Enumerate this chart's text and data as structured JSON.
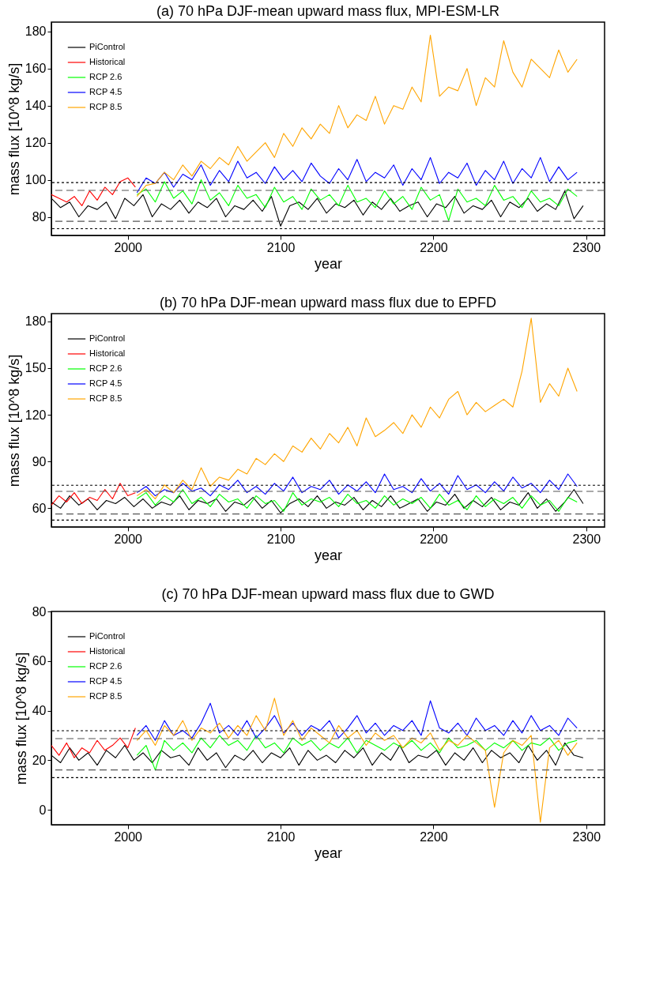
{
  "chart_data": [
    {
      "type": "line",
      "title": "(a) 70 hPa DJF-mean upward mass flux, MPI-ESM-LR",
      "xlabel": "year",
      "ylabel": "mass flux [10^8 kg/s]",
      "xlim": [
        1950,
        2312
      ],
      "ylim": [
        70,
        185
      ],
      "xticks": [
        2000,
        2100,
        2200,
        2300
      ],
      "yticks": [
        80,
        100,
        120,
        140,
        160,
        180
      ],
      "legend": "top left",
      "grid": false,
      "ref_lines": [
        {
          "axis": "y",
          "value": 98.5,
          "color": "#000000",
          "line_style": "dotted"
        },
        {
          "axis": "y",
          "value": 94.3,
          "color": "#555555",
          "line_style": "dashed"
        },
        {
          "axis": "y",
          "value": 77.6,
          "color": "#555555",
          "line_style": "dashed"
        },
        {
          "axis": "y",
          "value": 73.6,
          "color": "#000000",
          "line_style": "dotted"
        }
      ],
      "series": [
        {
          "name": "PiControl",
          "color": "#000000",
          "x": [
            1950,
            1956,
            1962,
            1968,
            1974,
            1980,
            1986,
            1992,
            1998,
            2004,
            2010,
            2016,
            2022,
            2028,
            2034,
            2040,
            2046,
            2052,
            2058,
            2064,
            2070,
            2076,
            2082,
            2088,
            2094,
            2100,
            2106,
            2112,
            2118,
            2124,
            2130,
            2136,
            2142,
            2148,
            2154,
            2160,
            2166,
            2172,
            2178,
            2184,
            2190,
            2196,
            2202,
            2208,
            2214,
            2220,
            2226,
            2232,
            2238,
            2244,
            2250,
            2256,
            2262,
            2268,
            2274,
            2280,
            2286,
            2292,
            2298
          ],
          "values": [
            90,
            85,
            88,
            80,
            86,
            84,
            88,
            79,
            90,
            86,
            92,
            80,
            87,
            84,
            89,
            82,
            88,
            85,
            90,
            80,
            86,
            84,
            89,
            83,
            91,
            75,
            86,
            88,
            84,
            90,
            82,
            87,
            85,
            89,
            81,
            88,
            84,
            90,
            83,
            86,
            88,
            80,
            87,
            85,
            91,
            82,
            86,
            84,
            89,
            80,
            88,
            85,
            90,
            83,
            87,
            84,
            94,
            79,
            86
          ]
        },
        {
          "name": "Historical",
          "color": "#ff0000",
          "x": [
            1950,
            1955,
            1960,
            1965,
            1970,
            1975,
            1980,
            1985,
            1990,
            1995,
            2000,
            2005
          ],
          "values": [
            92,
            90,
            88,
            91,
            86,
            94,
            89,
            96,
            92,
            99,
            101,
            96
          ]
        },
        {
          "name": "RCP 2.6",
          "color": "#00ff00",
          "x": [
            2006,
            2012,
            2018,
            2024,
            2030,
            2036,
            2042,
            2048,
            2054,
            2060,
            2066,
            2072,
            2078,
            2084,
            2090,
            2096,
            2102,
            2108,
            2114,
            2120,
            2126,
            2132,
            2138,
            2144,
            2150,
            2156,
            2162,
            2168,
            2174,
            2180,
            2186,
            2192,
            2198,
            2204,
            2210,
            2216,
            2222,
            2228,
            2234,
            2240,
            2246,
            2252,
            2258,
            2264,
            2270,
            2276,
            2282,
            2288,
            2294
          ],
          "values": [
            92,
            95,
            88,
            99,
            90,
            94,
            87,
            100,
            89,
            93,
            86,
            97,
            90,
            92,
            85,
            96,
            88,
            91,
            84,
            95,
            89,
            92,
            86,
            97,
            88,
            90,
            85,
            94,
            87,
            91,
            84,
            96,
            89,
            92,
            78,
            95,
            88,
            90,
            86,
            97,
            89,
            91,
            85,
            94,
            88,
            90,
            86,
            95,
            91
          ]
        },
        {
          "name": "RCP 4.5",
          "color": "#0000ff",
          "x": [
            2006,
            2012,
            2018,
            2024,
            2030,
            2036,
            2042,
            2048,
            2054,
            2060,
            2066,
            2072,
            2078,
            2084,
            2090,
            2096,
            2102,
            2108,
            2114,
            2120,
            2126,
            2132,
            2138,
            2144,
            2150,
            2156,
            2162,
            2168,
            2174,
            2180,
            2186,
            2192,
            2198,
            2204,
            2210,
            2216,
            2222,
            2228,
            2234,
            2240,
            2246,
            2252,
            2258,
            2264,
            2270,
            2276,
            2282,
            2288,
            2294
          ],
          "values": [
            93,
            101,
            98,
            104,
            96,
            103,
            100,
            108,
            97,
            105,
            99,
            110,
            101,
            104,
            98,
            107,
            100,
            105,
            99,
            109,
            102,
            98,
            106,
            100,
            111,
            99,
            104,
            101,
            108,
            97,
            106,
            100,
            112,
            98,
            104,
            101,
            109,
            97,
            105,
            100,
            110,
            98,
            106,
            101,
            112,
            99,
            107,
            100,
            104
          ]
        },
        {
          "name": "RCP 8.5",
          "color": "#ffa500",
          "x": [
            2006,
            2012,
            2018,
            2024,
            2030,
            2036,
            2042,
            2048,
            2054,
            2060,
            2066,
            2072,
            2078,
            2084,
            2090,
            2096,
            2102,
            2108,
            2114,
            2120,
            2126,
            2132,
            2138,
            2144,
            2150,
            2156,
            2162,
            2168,
            2174,
            2180,
            2186,
            2192,
            2198,
            2204,
            2210,
            2216,
            2222,
            2228,
            2234,
            2240,
            2246,
            2252,
            2258,
            2264,
            2270,
            2276,
            2282,
            2288,
            2294
          ],
          "values": [
            91,
            97,
            98,
            104,
            100,
            108,
            102,
            110,
            106,
            112,
            108,
            118,
            110,
            115,
            120,
            112,
            125,
            118,
            128,
            122,
            130,
            125,
            140,
            128,
            135,
            132,
            145,
            130,
            140,
            138,
            150,
            142,
            178,
            145,
            150,
            148,
            160,
            140,
            155,
            150,
            175,
            158,
            150,
            165,
            160,
            155,
            170,
            158,
            165
          ]
        }
      ]
    },
    {
      "type": "line",
      "title": "(b) 70 hPa DJF-mean upward mass flux due to EPFD",
      "xlabel": "year",
      "ylabel": "mass flux [10^8 kg/s]",
      "xlim": [
        1950,
        2312
      ],
      "ylim": [
        48,
        185
      ],
      "xticks": [
        2000,
        2100,
        2200,
        2300
      ],
      "yticks": [
        60,
        90,
        120,
        150,
        180
      ],
      "legend": "top left",
      "grid": false,
      "ref_lines": [
        {
          "axis": "y",
          "value": 74.8,
          "color": "#000000",
          "line_style": "dotted"
        },
        {
          "axis": "y",
          "value": 70.8,
          "color": "#555555",
          "line_style": "dashed"
        },
        {
          "axis": "y",
          "value": 56.3,
          "color": "#555555",
          "line_style": "dashed"
        },
        {
          "axis": "y",
          "value": 52.4,
          "color": "#000000",
          "line_style": "dotted"
        }
      ],
      "series": [
        {
          "name": "PiControl",
          "color": "#000000",
          "x": [
            1950,
            1956,
            1962,
            1968,
            1974,
            1980,
            1986,
            1992,
            1998,
            2004,
            2010,
            2016,
            2022,
            2028,
            2034,
            2040,
            2046,
            2052,
            2058,
            2064,
            2070,
            2076,
            2082,
            2088,
            2094,
            2100,
            2106,
            2112,
            2118,
            2124,
            2130,
            2136,
            2142,
            2148,
            2154,
            2160,
            2166,
            2172,
            2178,
            2184,
            2190,
            2196,
            2202,
            2208,
            2214,
            2220,
            2226,
            2232,
            2238,
            2244,
            2250,
            2256,
            2262,
            2268,
            2274,
            2280,
            2286,
            2292,
            2298
          ],
          "values": [
            64,
            60,
            68,
            62,
            66,
            59,
            65,
            63,
            67,
            61,
            66,
            60,
            64,
            62,
            68,
            59,
            65,
            63,
            66,
            58,
            64,
            62,
            67,
            60,
            65,
            57,
            63,
            66,
            61,
            68,
            60,
            64,
            62,
            67,
            59,
            65,
            61,
            68,
            60,
            63,
            66,
            58,
            64,
            62,
            69,
            60,
            65,
            61,
            67,
            59,
            64,
            62,
            70,
            60,
            66,
            58,
            64,
            72,
            63
          ]
        },
        {
          "name": "Historical",
          "color": "#ff0000",
          "x": [
            1950,
            1955,
            1960,
            1965,
            1970,
            1975,
            1980,
            1985,
            1990,
            1995,
            2000,
            2005
          ],
          "values": [
            62,
            68,
            64,
            70,
            63,
            67,
            65,
            72,
            66,
            76,
            68,
            70
          ]
        },
        {
          "name": "RCP 2.6",
          "color": "#00ff00",
          "x": [
            2006,
            2012,
            2018,
            2024,
            2030,
            2036,
            2042,
            2048,
            2054,
            2060,
            2066,
            2072,
            2078,
            2084,
            2090,
            2096,
            2102,
            2108,
            2114,
            2120,
            2126,
            2132,
            2138,
            2144,
            2150,
            2156,
            2162,
            2168,
            2174,
            2180,
            2186,
            2192,
            2198,
            2204,
            2210,
            2216,
            2222,
            2228,
            2234,
            2240,
            2246,
            2252,
            2258,
            2264,
            2270,
            2276,
            2282,
            2288,
            2294
          ],
          "values": [
            66,
            70,
            62,
            68,
            64,
            72,
            63,
            67,
            61,
            69,
            64,
            66,
            60,
            68,
            63,
            65,
            58,
            70,
            62,
            66,
            64,
            67,
            61,
            69,
            63,
            65,
            60,
            68,
            62,
            66,
            63,
            67,
            60,
            69,
            62,
            65,
            59,
            68,
            61,
            66,
            63,
            67,
            60,
            68,
            62,
            65,
            58,
            67,
            64
          ]
        },
        {
          "name": "RCP 4.5",
          "color": "#0000ff",
          "x": [
            2006,
            2012,
            2018,
            2024,
            2030,
            2036,
            2042,
            2048,
            2054,
            2060,
            2066,
            2072,
            2078,
            2084,
            2090,
            2096,
            2102,
            2108,
            2114,
            2120,
            2126,
            2132,
            2138,
            2144,
            2150,
            2156,
            2162,
            2168,
            2174,
            2180,
            2186,
            2192,
            2198,
            2204,
            2210,
            2216,
            2222,
            2228,
            2234,
            2240,
            2246,
            2252,
            2258,
            2264,
            2270,
            2276,
            2282,
            2288,
            2294
          ],
          "values": [
            70,
            74,
            68,
            72,
            70,
            76,
            71,
            73,
            68,
            75,
            72,
            78,
            70,
            74,
            69,
            76,
            71,
            80,
            70,
            74,
            72,
            78,
            69,
            75,
            71,
            77,
            70,
            82,
            72,
            74,
            70,
            79,
            71,
            76,
            69,
            81,
            72,
            75,
            70,
            77,
            71,
            80,
            73,
            76,
            70,
            78,
            72,
            82,
            74
          ]
        },
        {
          "name": "RCP 8.5",
          "color": "#ffa500",
          "x": [
            2006,
            2012,
            2018,
            2024,
            2030,
            2036,
            2042,
            2048,
            2054,
            2060,
            2066,
            2072,
            2078,
            2084,
            2090,
            2096,
            2102,
            2108,
            2114,
            2120,
            2126,
            2132,
            2138,
            2144,
            2150,
            2156,
            2162,
            2168,
            2174,
            2180,
            2186,
            2192,
            2198,
            2204,
            2210,
            2216,
            2222,
            2228,
            2234,
            2240,
            2246,
            2252,
            2258,
            2264,
            2270,
            2276,
            2282,
            2288,
            2294
          ],
          "values": [
            68,
            72,
            66,
            75,
            70,
            78,
            72,
            86,
            74,
            80,
            78,
            85,
            82,
            92,
            88,
            95,
            90,
            100,
            96,
            105,
            98,
            108,
            102,
            112,
            100,
            118,
            106,
            110,
            115,
            108,
            120,
            112,
            125,
            118,
            130,
            135,
            120,
            128,
            122,
            126,
            130,
            125,
            148,
            182,
            128,
            140,
            132,
            150,
            135
          ]
        }
      ]
    },
    {
      "type": "line",
      "title": "(c) 70 hPa DJF-mean upward mass flux due to GWD",
      "xlabel": "year",
      "ylabel": "mass flux [10^8 kg/s]",
      "xlim": [
        1950,
        2312
      ],
      "ylim": [
        -6,
        80
      ],
      "xticks": [
        2000,
        2100,
        2200,
        2300
      ],
      "yticks": [
        0,
        20,
        40,
        60,
        80
      ],
      "legend": "top left",
      "grid": false,
      "ref_lines": [
        {
          "axis": "y",
          "value": 31.9,
          "color": "#000000",
          "line_style": "dotted"
        },
        {
          "axis": "y",
          "value": 28.7,
          "color": "#555555",
          "line_style": "dashed"
        },
        {
          "axis": "y",
          "value": 16.1,
          "color": "#555555",
          "line_style": "dashed"
        },
        {
          "axis": "y",
          "value": 13.0,
          "color": "#000000",
          "line_style": "dotted"
        }
      ],
      "series": [
        {
          "name": "PiControl",
          "color": "#000000",
          "x": [
            1950,
            1956,
            1962,
            1968,
            1974,
            1980,
            1986,
            1992,
            1998,
            2004,
            2010,
            2016,
            2022,
            2028,
            2034,
            2040,
            2046,
            2052,
            2058,
            2064,
            2070,
            2076,
            2082,
            2088,
            2094,
            2100,
            2106,
            2112,
            2118,
            2124,
            2130,
            2136,
            2142,
            2148,
            2154,
            2160,
            2166,
            2172,
            2178,
            2184,
            2190,
            2196,
            2202,
            2208,
            2214,
            2220,
            2226,
            2232,
            2238,
            2244,
            2250,
            2256,
            2262,
            2268,
            2274,
            2280,
            2286,
            2292,
            2298
          ],
          "values": [
            22,
            19,
            25,
            20,
            23,
            18,
            24,
            21,
            26,
            20,
            23,
            19,
            24,
            21,
            22,
            18,
            25,
            20,
            23,
            17,
            22,
            20,
            24,
            19,
            23,
            21,
            25,
            18,
            24,
            20,
            22,
            19,
            24,
            21,
            25,
            18,
            23,
            20,
            26,
            19,
            22,
            21,
            24,
            18,
            23,
            20,
            25,
            19,
            24,
            21,
            23,
            19,
            26,
            20,
            24,
            18,
            27,
            22,
            21
          ]
        },
        {
          "name": "Historical",
          "color": "#ff0000",
          "x": [
            1950,
            1955,
            1960,
            1965,
            1970,
            1975,
            1980,
            1985,
            1990,
            1995,
            2000,
            2005
          ],
          "values": [
            26,
            22,
            27,
            21,
            25,
            23,
            28,
            24,
            26,
            29,
            25,
            33
          ]
        },
        {
          "name": "RCP 2.6",
          "color": "#00ff00",
          "x": [
            2006,
            2012,
            2018,
            2024,
            2030,
            2036,
            2042,
            2048,
            2054,
            2060,
            2066,
            2072,
            2078,
            2084,
            2090,
            2096,
            2102,
            2108,
            2114,
            2120,
            2126,
            2132,
            2138,
            2144,
            2150,
            2156,
            2162,
            2168,
            2174,
            2180,
            2186,
            2192,
            2198,
            2204,
            2210,
            2216,
            2222,
            2228,
            2234,
            2240,
            2246,
            2252,
            2258,
            2264,
            2270,
            2276,
            2282,
            2288,
            2294
          ],
          "values": [
            22,
            26,
            16,
            28,
            24,
            27,
            23,
            29,
            25,
            30,
            26,
            28,
            24,
            30,
            25,
            27,
            23,
            29,
            26,
            28,
            24,
            27,
            25,
            29,
            23,
            28,
            26,
            24,
            27,
            25,
            28,
            24,
            27,
            23,
            29,
            25,
            26,
            28,
            24,
            27,
            25,
            28,
            24,
            27,
            26,
            29,
            24,
            27,
            28
          ]
        },
        {
          "name": "RCP 4.5",
          "color": "#0000ff",
          "x": [
            2006,
            2012,
            2018,
            2024,
            2030,
            2036,
            2042,
            2048,
            2054,
            2060,
            2066,
            2072,
            2078,
            2084,
            2090,
            2096,
            2102,
            2108,
            2114,
            2120,
            2126,
            2132,
            2138,
            2144,
            2150,
            2156,
            2162,
            2168,
            2174,
            2180,
            2186,
            2192,
            2198,
            2204,
            2210,
            2216,
            2222,
            2228,
            2234,
            2240,
            2246,
            2252,
            2258,
            2264,
            2270,
            2276,
            2282,
            2288,
            2294
          ],
          "values": [
            30,
            34,
            28,
            36,
            30,
            32,
            29,
            35,
            43,
            31,
            34,
            30,
            36,
            29,
            33,
            38,
            31,
            35,
            30,
            34,
            32,
            36,
            29,
            33,
            38,
            31,
            35,
            30,
            34,
            32,
            36,
            30,
            44,
            33,
            31,
            35,
            30,
            37,
            32,
            34,
            30,
            36,
            31,
            38,
            32,
            34,
            30,
            37,
            33
          ]
        },
        {
          "name": "RCP 8.5",
          "color": "#ffa500",
          "x": [
            2006,
            2012,
            2018,
            2024,
            2030,
            2036,
            2042,
            2048,
            2054,
            2060,
            2066,
            2072,
            2078,
            2084,
            2090,
            2096,
            2102,
            2108,
            2114,
            2120,
            2126,
            2132,
            2138,
            2144,
            2150,
            2156,
            2162,
            2168,
            2174,
            2180,
            2186,
            2192,
            2198,
            2204,
            2210,
            2216,
            2222,
            2228,
            2234,
            2240,
            2246,
            2252,
            2258,
            2264,
            2270,
            2276,
            2282,
            2288,
            2294
          ],
          "values": [
            28,
            32,
            26,
            34,
            30,
            36,
            28,
            33,
            31,
            35,
            29,
            34,
            30,
            38,
            32,
            45,
            30,
            36,
            28,
            33,
            30,
            27,
            34,
            29,
            32,
            26,
            31,
            28,
            30,
            25,
            29,
            27,
            31,
            24,
            28,
            26,
            30,
            27,
            24,
            1,
            23,
            28,
            26,
            30,
            -5,
            25,
            28,
            22,
            27
          ]
        }
      ]
    }
  ]
}
